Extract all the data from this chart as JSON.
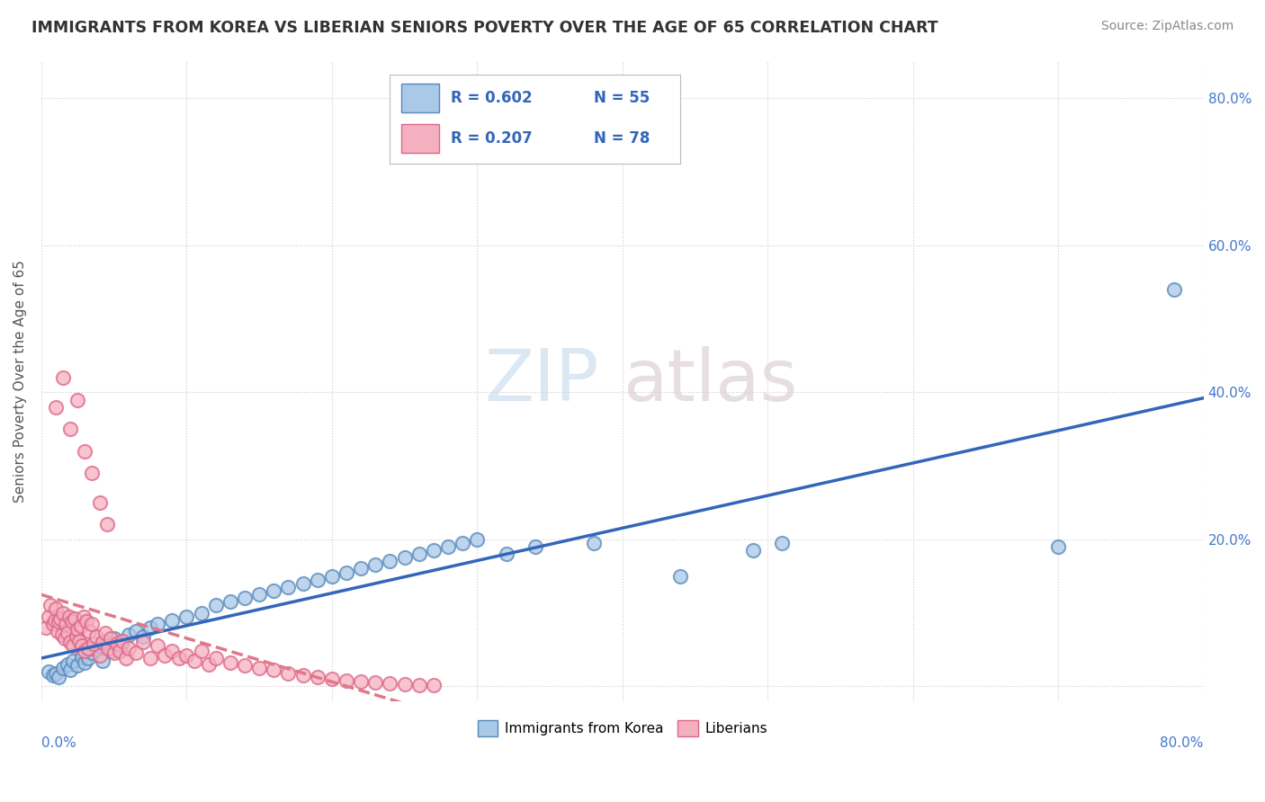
{
  "title": "IMMIGRANTS FROM KOREA VS LIBERIAN SENIORS POVERTY OVER THE AGE OF 65 CORRELATION CHART",
  "source": "Source: ZipAtlas.com",
  "ylabel": "Seniors Poverty Over the Age of 65",
  "xlim": [
    0,
    0.8
  ],
  "ylim": [
    -0.02,
    0.85
  ],
  "korea_color": "#aac8e8",
  "liberia_color": "#f5b0c0",
  "korea_edge": "#5588bb",
  "liberia_edge": "#dd6688",
  "trendline_korea_color": "#3366bb",
  "trendline_liberia_color": "#e07888",
  "watermark_zip": "ZIP",
  "watermark_atlas": "atlas",
  "korea_x": [
    0.005,
    0.008,
    0.01,
    0.012,
    0.015,
    0.018,
    0.02,
    0.022,
    0.025,
    0.028,
    0.03,
    0.032,
    0.035,
    0.038,
    0.04,
    0.042,
    0.045,
    0.048,
    0.05,
    0.055,
    0.06,
    0.065,
    0.07,
    0.075,
    0.08,
    0.09,
    0.1,
    0.11,
    0.12,
    0.13,
    0.14,
    0.15,
    0.16,
    0.17,
    0.18,
    0.19,
    0.2,
    0.21,
    0.22,
    0.23,
    0.24,
    0.25,
    0.26,
    0.27,
    0.28,
    0.29,
    0.3,
    0.32,
    0.34,
    0.38,
    0.44,
    0.49,
    0.51,
    0.7,
    0.78
  ],
  "korea_y": [
    0.02,
    0.015,
    0.018,
    0.012,
    0.025,
    0.03,
    0.022,
    0.035,
    0.028,
    0.04,
    0.032,
    0.038,
    0.045,
    0.05,
    0.055,
    0.035,
    0.06,
    0.048,
    0.065,
    0.058,
    0.07,
    0.075,
    0.068,
    0.08,
    0.085,
    0.09,
    0.095,
    0.1,
    0.11,
    0.115,
    0.12,
    0.125,
    0.13,
    0.135,
    0.14,
    0.145,
    0.15,
    0.155,
    0.16,
    0.165,
    0.17,
    0.175,
    0.18,
    0.185,
    0.19,
    0.195,
    0.2,
    0.18,
    0.19,
    0.195,
    0.15,
    0.185,
    0.195,
    0.19,
    0.54
  ],
  "liberia_x": [
    0.003,
    0.005,
    0.006,
    0.008,
    0.009,
    0.01,
    0.011,
    0.012,
    0.013,
    0.014,
    0.015,
    0.016,
    0.017,
    0.018,
    0.019,
    0.02,
    0.021,
    0.022,
    0.023,
    0.024,
    0.025,
    0.026,
    0.027,
    0.028,
    0.029,
    0.03,
    0.031,
    0.032,
    0.033,
    0.035,
    0.036,
    0.038,
    0.04,
    0.042,
    0.044,
    0.046,
    0.048,
    0.05,
    0.052,
    0.054,
    0.056,
    0.058,
    0.06,
    0.065,
    0.07,
    0.075,
    0.08,
    0.085,
    0.09,
    0.095,
    0.1,
    0.105,
    0.11,
    0.115,
    0.12,
    0.13,
    0.14,
    0.15,
    0.16,
    0.17,
    0.18,
    0.19,
    0.2,
    0.21,
    0.22,
    0.23,
    0.24,
    0.25,
    0.26,
    0.27,
    0.01,
    0.015,
    0.02,
    0.025,
    0.03,
    0.035,
    0.04,
    0.045
  ],
  "liberia_y": [
    0.08,
    0.095,
    0.11,
    0.085,
    0.09,
    0.105,
    0.075,
    0.088,
    0.092,
    0.07,
    0.1,
    0.065,
    0.085,
    0.072,
    0.095,
    0.06,
    0.088,
    0.055,
    0.092,
    0.068,
    0.078,
    0.062,
    0.082,
    0.055,
    0.095,
    0.048,
    0.088,
    0.052,
    0.075,
    0.085,
    0.058,
    0.068,
    0.042,
    0.06,
    0.072,
    0.052,
    0.065,
    0.045,
    0.058,
    0.048,
    0.062,
    0.038,
    0.052,
    0.045,
    0.06,
    0.038,
    0.055,
    0.042,
    0.048,
    0.038,
    0.042,
    0.035,
    0.048,
    0.03,
    0.038,
    0.032,
    0.028,
    0.025,
    0.022,
    0.018,
    0.015,
    0.012,
    0.01,
    0.008,
    0.006,
    0.005,
    0.004,
    0.003,
    0.002,
    0.001,
    0.38,
    0.42,
    0.35,
    0.39,
    0.32,
    0.29,
    0.25,
    0.22
  ]
}
